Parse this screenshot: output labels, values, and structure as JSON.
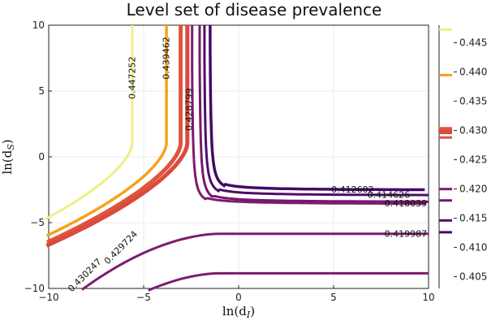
{
  "chart_data": {
    "type": "contour",
    "title": "Level set of disease prevalence",
    "xlabel": "ln(d_I)",
    "ylabel": "ln(d_S)",
    "xlim": [
      -10,
      10
    ],
    "ylim": [
      -10,
      10
    ],
    "xticks": [
      -10,
      -5,
      0,
      5,
      10
    ],
    "yticks": [
      -10,
      -5,
      0,
      5,
      10
    ],
    "grid": true,
    "colorbar": {
      "range": [
        0.403,
        0.448
      ],
      "ticks": [
        "0.405",
        "0.410",
        "0.415",
        "0.420",
        "0.425",
        "0.430",
        "0.435",
        "0.440",
        "0.445"
      ],
      "tick_values": [
        0.405,
        0.41,
        0.415,
        0.42,
        0.425,
        0.43,
        0.435,
        0.44,
        0.445
      ]
    },
    "levels": [
      {
        "value": 0.447252,
        "label": "0.447252",
        "color": "#f0ee86",
        "kind": "vertical",
        "x_asym": -5.6,
        "curve": "left"
      },
      {
        "value": 0.439462,
        "label": "0.439462",
        "color": "#f5a21b",
        "kind": "vertical",
        "x_asym": -3.8,
        "curve": "left"
      },
      {
        "value": 0.430247,
        "label": "0.430247",
        "color": "#e0543a",
        "kind": "vertical",
        "x_asym": -3.05,
        "curve": "left"
      },
      {
        "value": 0.429724,
        "label": "0.429724",
        "color": "#d94a3e",
        "kind": "vertical",
        "x_asym": -2.7,
        "curve": "left"
      },
      {
        "value": 0.428799,
        "label": "0.428799",
        "color": "#7c1c6d",
        "kind": "corner",
        "x_asym": -2.45,
        "y_asym": -3.55
      },
      {
        "value": 0.419987,
        "label": "0.419987",
        "color": "#7c1c6d",
        "kind": "horizontal",
        "y_asym": -5.85,
        "curve": "down"
      },
      {
        "value": 0.418039,
        "label": "0.418039",
        "color": "#731a6e",
        "kind": "corner",
        "x_asym": -2.05,
        "y_asym": -3.4
      },
      {
        "value": 0.414626,
        "label": "0.414626",
        "color": "#4f0c6b",
        "kind": "corner",
        "x_asym": -1.8,
        "y_asym": -2.9
      },
      {
        "value": 0.412602,
        "label": "0.412602",
        "color": "#420a68",
        "kind": "corner",
        "x_asym": -1.5,
        "y_asym": -2.5
      },
      {
        "value": 0.41,
        "label": "",
        "color": "#7c1c6d",
        "kind": "horizontal",
        "y_asym": -8.85,
        "curve": "down"
      }
    ],
    "colorbar_marks": [
      {
        "value": 0.447252,
        "color": "#f0ee86"
      },
      {
        "value": 0.439462,
        "color": "#f5a21b"
      },
      {
        "value": 0.430247,
        "color": "#e0543a"
      },
      {
        "value": 0.429724,
        "color": "#d94a3e"
      },
      {
        "value": 0.428799,
        "color": "#e0543a"
      },
      {
        "value": 0.419987,
        "color": "#7c1c6d"
      },
      {
        "value": 0.418039,
        "color": "#731a6e"
      },
      {
        "value": 0.414626,
        "color": "#4f0c6b"
      },
      {
        "value": 0.412602,
        "color": "#420a68"
      }
    ]
  }
}
